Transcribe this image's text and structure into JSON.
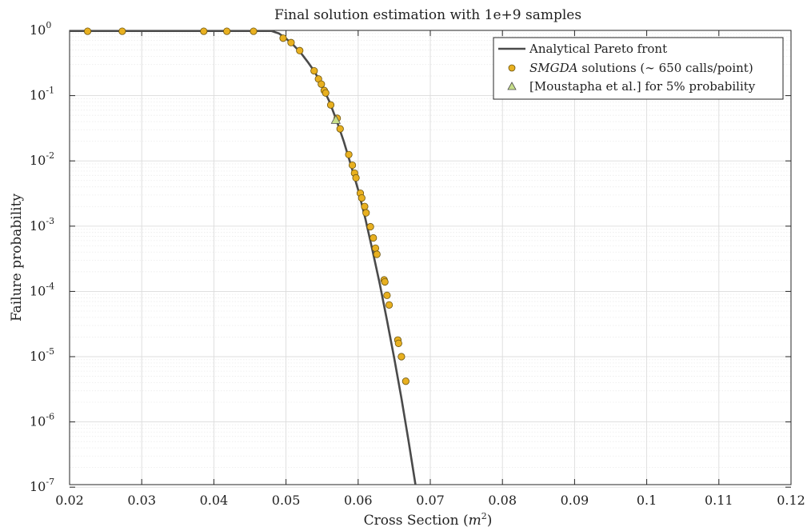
{
  "chart_data": {
    "type": "line",
    "title": "Final solution estimation with 1e+9 samples",
    "xlabel": "Cross Section (",
    "xlabel_var": "m",
    "xlabel_exp": "2",
    "xlabel_close": ")",
    "ylabel": "Failure probability",
    "xlim": [
      0.02,
      0.12
    ],
    "ylim": [
      1e-07,
      1.4
    ],
    "yscale": "log",
    "grid": true,
    "legend_position": "top-right",
    "x_ticks": [
      0.02,
      0.03,
      0.04,
      0.05,
      0.06,
      0.07,
      0.08,
      0.09,
      0.1,
      0.11,
      0.12
    ],
    "x_tick_labels": [
      "0.02",
      "0.03",
      "0.04",
      "0.05",
      "0.06",
      "0.07",
      "0.08",
      "0.09",
      "0.1",
      "0.11",
      "0.12"
    ],
    "y_ticks": [
      {
        "value": 1,
        "base": "10",
        "exp": "0"
      },
      {
        "value": 0.1,
        "base": "10",
        "exp": "-1"
      },
      {
        "value": 0.01,
        "base": "10",
        "exp": "-2"
      },
      {
        "value": 0.001,
        "base": "10",
        "exp": "-3"
      },
      {
        "value": 0.0001,
        "base": "10",
        "exp": "-4"
      },
      {
        "value": 1e-05,
        "base": "10",
        "exp": "-5"
      },
      {
        "value": 1e-06,
        "base": "10",
        "exp": "-6"
      },
      {
        "value": 1e-07,
        "base": "10",
        "exp": "-7"
      }
    ],
    "series": [
      {
        "name": "Analytical Pareto front",
        "kind": "line",
        "color": "#4a4a4a",
        "points": [
          [
            0.02,
            0.98
          ],
          [
            0.048,
            0.98
          ],
          [
            0.049,
            0.9
          ],
          [
            0.05,
            0.75
          ],
          [
            0.051,
            0.6
          ],
          [
            0.052,
            0.46
          ],
          [
            0.053,
            0.33
          ],
          [
            0.054,
            0.23
          ],
          [
            0.055,
            0.14
          ],
          [
            0.056,
            0.082
          ],
          [
            0.057,
            0.042
          ],
          [
            0.058,
            0.02
          ],
          [
            0.059,
            0.0086
          ],
          [
            0.06,
            0.0036
          ],
          [
            0.061,
            0.0013
          ],
          [
            0.062,
            0.00042
          ],
          [
            0.063,
            0.00013
          ],
          [
            0.064,
            3.6e-05
          ],
          [
            0.065,
            9.5e-06
          ],
          [
            0.066,
            2.3e-06
          ],
          [
            0.067,
            5e-07
          ],
          [
            0.068,
            1e-07
          ],
          [
            0.0693,
            1e-07
          ]
        ]
      },
      {
        "name": "SMGDA",
        "name_suffix": " solutions (∼ 650 calls/point)",
        "kind": "scatter",
        "marker": "circle",
        "color": "#e8b020",
        "edge": "#6b5410",
        "points": [
          [
            0.0225,
            0.97
          ],
          [
            0.0273,
            0.97
          ],
          [
            0.0386,
            0.97
          ],
          [
            0.0418,
            0.97
          ],
          [
            0.0455,
            0.97
          ],
          [
            0.0496,
            0.76
          ],
          [
            0.0507,
            0.65
          ],
          [
            0.0519,
            0.49
          ],
          [
            0.0539,
            0.24
          ],
          [
            0.0545,
            0.18
          ],
          [
            0.0549,
            0.15
          ],
          [
            0.0553,
            0.12
          ],
          [
            0.0555,
            0.11
          ],
          [
            0.0562,
            0.072
          ],
          [
            0.0571,
            0.045
          ],
          [
            0.0575,
            0.031
          ],
          [
            0.0587,
            0.0125
          ],
          [
            0.0592,
            0.0086
          ],
          [
            0.0595,
            0.0065
          ],
          [
            0.0597,
            0.0055
          ],
          [
            0.0603,
            0.0032
          ],
          [
            0.0605,
            0.0027
          ],
          [
            0.0609,
            0.002
          ],
          [
            0.0611,
            0.0016
          ],
          [
            0.0617,
            0.00098
          ],
          [
            0.0621,
            0.00066
          ],
          [
            0.0624,
            0.00046
          ],
          [
            0.0626,
            0.00037
          ],
          [
            0.0636,
            0.00015
          ],
          [
            0.0637,
            0.00014
          ],
          [
            0.064,
            8.7e-05
          ],
          [
            0.0643,
            6.2e-05
          ],
          [
            0.0655,
            1.8e-05
          ],
          [
            0.0656,
            1.6e-05
          ],
          [
            0.066,
            1e-05
          ],
          [
            0.0666,
            4.2e-06
          ]
        ]
      },
      {
        "name": "[Moustapha et al.] for 5% probability",
        "kind": "scatter",
        "marker": "triangle",
        "color": "#c6de8a",
        "edge": "#4a4a4a",
        "points": [
          [
            0.0569,
            0.042
          ]
        ]
      }
    ]
  }
}
